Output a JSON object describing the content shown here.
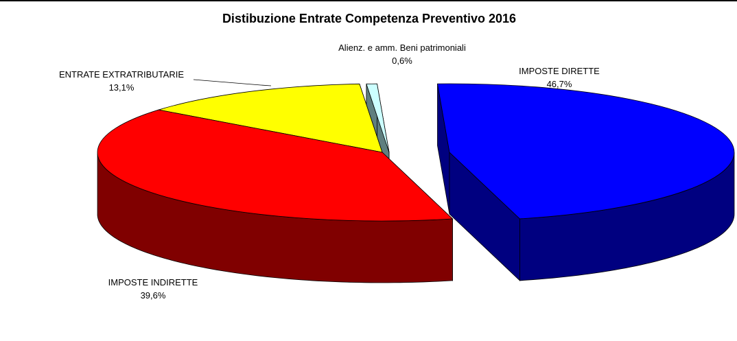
{
  "chart_data": {
    "type": "pie",
    "title": "Distibuzione Entrate Competenza Preventivo 2016",
    "slices": [
      {
        "label": "IMPOSTE DIRETTE",
        "value": 46.7,
        "value_label": "46,7%",
        "top_color": "#0000FF",
        "side_color": "#000080"
      },
      {
        "label": "IMPOSTE INDIRETTE",
        "value": 39.6,
        "value_label": "39,6%",
        "top_color": "#FF0000",
        "side_color": "#800000"
      },
      {
        "label": "ENTRATE EXTRATRIBUTARIE",
        "value": 13.1,
        "value_label": "13,1%",
        "top_color": "#FFFF00",
        "side_color": "#808000"
      },
      {
        "label": "Alienz. e amm. Beni patrimoniali",
        "value": 0.6,
        "value_label": "0,6%",
        "top_color": "#CCFFFF",
        "side_color": "#5F7F7F"
      }
    ],
    "style": "3d-exploded",
    "legend": "none"
  }
}
